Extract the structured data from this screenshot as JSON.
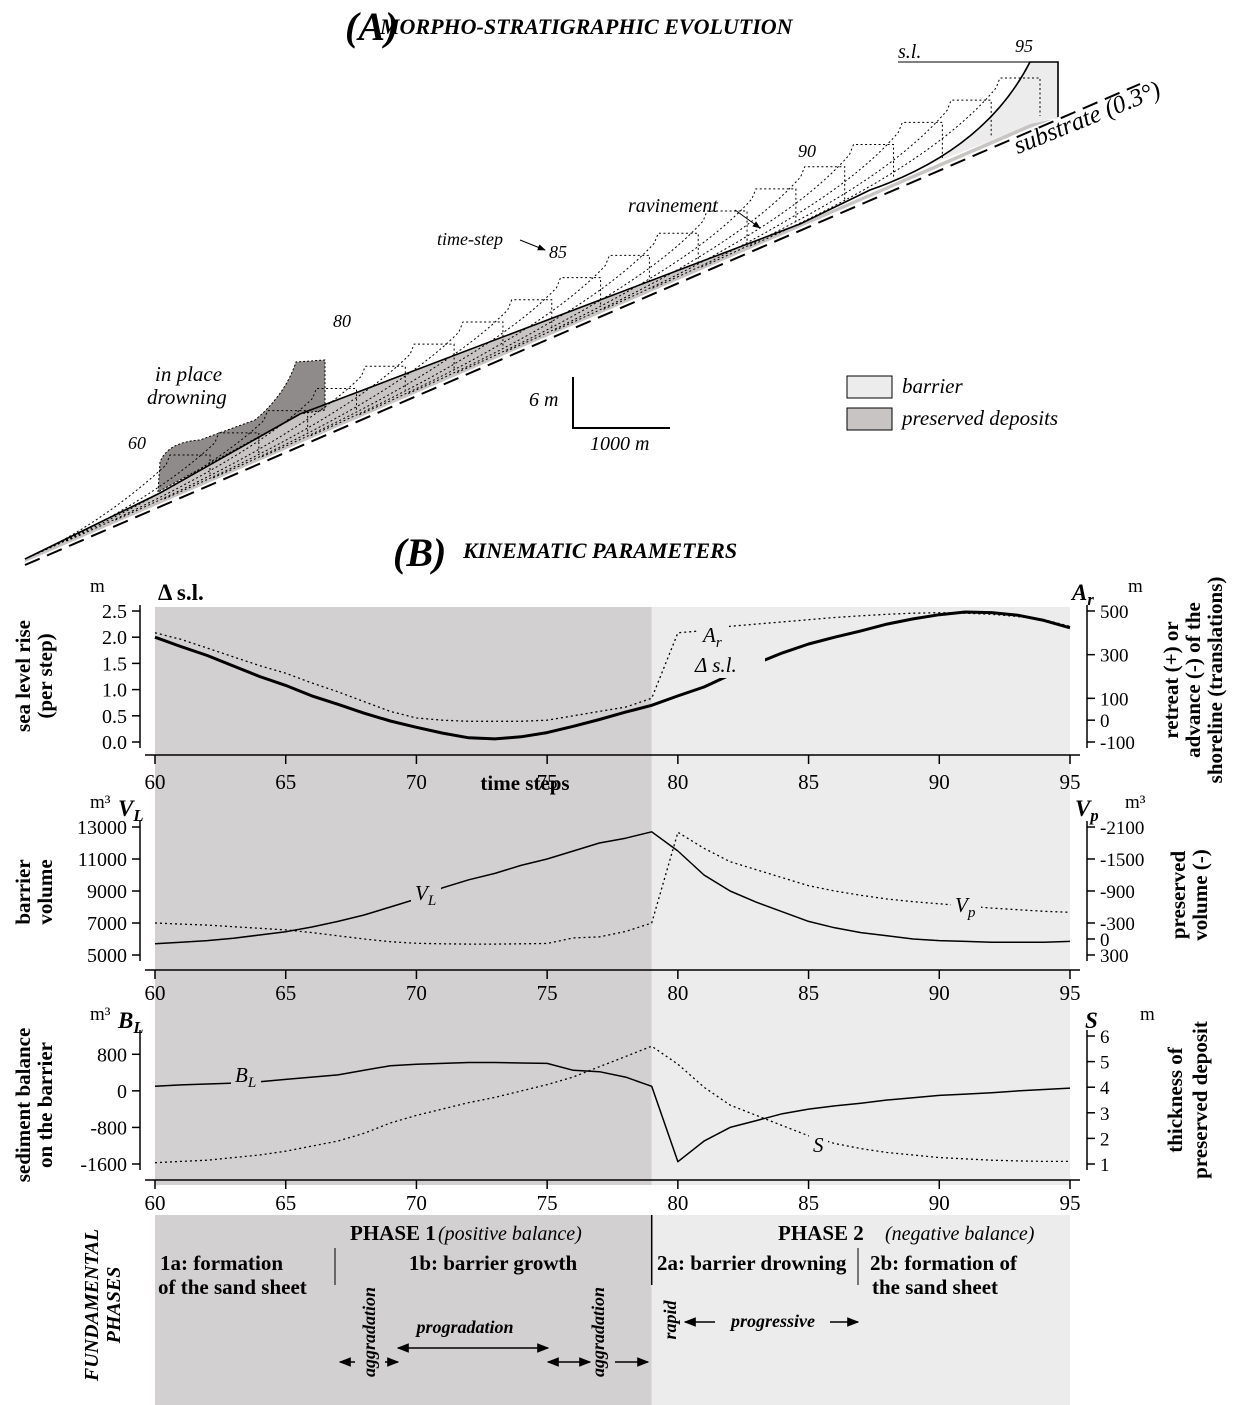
{
  "panel_a": {
    "label": "(A)",
    "title": "MORPHO-STRATIGRAPHIC EVOLUTION",
    "sea_level": "s.l.",
    "substrate": "substrate (0.3°)",
    "ravinement": "ravinement",
    "time_step": "time-step",
    "in_place_drowning": [
      "in place",
      "drowning"
    ],
    "step_labels": [
      "60",
      "80",
      "85",
      "90",
      "95"
    ],
    "scale_vertical": "6 m",
    "scale_horizontal": "1000 m",
    "legend": [
      "barrier",
      "preserved deposits"
    ]
  },
  "panel_b": {
    "label": "(B)",
    "title": "KINEMATIC PARAMETERS"
  },
  "chart_data": [
    {
      "type": "line",
      "xlim": [
        60,
        95
      ],
      "xticks": [
        60,
        65,
        70,
        75,
        80,
        85,
        90,
        95
      ],
      "xlabel": "time steps",
      "x": [
        60,
        61,
        62,
        63,
        64,
        65,
        66,
        67,
        68,
        69,
        70,
        71,
        72,
        73,
        74,
        75,
        76,
        77,
        78,
        79,
        80,
        81,
        82,
        83,
        84,
        85,
        86,
        87,
        88,
        89,
        90,
        91,
        92,
        93,
        94,
        95
      ],
      "y_unit": "m",
      "ylabel": [
        "sea level rise",
        "(per step)"
      ],
      "ylim": [
        0,
        2.5
      ],
      "yticks": [
        {
          "value": 0,
          "label": "0.0"
        },
        0.5,
        {
          "value": 1,
          "label": "1.0"
        },
        1.5,
        {
          "value": 2,
          "label": "2.0"
        },
        2.5
      ],
      "y2_unit": "m",
      "y2label": [
        "retreat (+) or",
        "advance (-) of the",
        "shoreline (translations)"
      ],
      "y2lim": [
        -100,
        500
      ],
      "y2ticks": [
        -100,
        0,
        100,
        300,
        500
      ],
      "series": [
        {
          "name": "Δ s.l.",
          "color": "#000000",
          "linewidth": 3,
          "style": "solid",
          "values": [
            2.0,
            1.82,
            1.65,
            1.45,
            1.25,
            1.08,
            0.88,
            0.72,
            0.55,
            0.4,
            0.28,
            0.17,
            0.08,
            0.06,
            0.1,
            0.18,
            0.3,
            0.43,
            0.57,
            0.7,
            0.88,
            1.05,
            1.28,
            1.5,
            1.7,
            1.87,
            2.0,
            2.12,
            2.25,
            2.35,
            2.43,
            2.48,
            2.47,
            2.42,
            2.32,
            2.18
          ]
        },
        {
          "name": "Ar",
          "axis": "y2",
          "color": "#000000",
          "linewidth": 1.3,
          "style": "dotted",
          "values": [
            400,
            370,
            330,
            290,
            250,
            215,
            170,
            130,
            85,
            40,
            10,
            0,
            -5,
            -5,
            -5,
            0,
            20,
            40,
            60,
            100,
            400,
            410,
            430,
            440,
            450,
            460,
            470,
            478,
            485,
            490,
            492,
            490,
            485,
            475,
            460,
            430
          ]
        }
      ]
    },
    {
      "type": "line",
      "xlim": [
        60,
        95
      ],
      "xticks": [
        60,
        65,
        70,
        75,
        80,
        85,
        90,
        95
      ],
      "x": [
        60,
        61,
        62,
        63,
        64,
        65,
        66,
        67,
        68,
        69,
        70,
        71,
        72,
        73,
        74,
        75,
        76,
        77,
        78,
        79,
        80,
        81,
        82,
        83,
        84,
        85,
        86,
        87,
        88,
        89,
        90,
        91,
        92,
        93,
        94,
        95
      ],
      "y_unit": "m³",
      "ylabel": [
        "barrier",
        "volume"
      ],
      "ylim": [
        5000,
        13000
      ],
      "yticks": [
        5000,
        7000,
        9000,
        11000,
        13000
      ],
      "y2_unit": "m³",
      "y2label": [
        "preserved",
        "volume (-)"
      ],
      "y2lim": [
        300,
        -2100
      ],
      "y2ticks": [
        300,
        0,
        -300,
        -900,
        -1500,
        -2100
      ],
      "series": [
        {
          "name": "VL",
          "color": "#000000",
          "linewidth": 1.5,
          "style": "solid",
          "values": [
            5700,
            5800,
            5900,
            6050,
            6250,
            6450,
            6750,
            7100,
            7500,
            8000,
            8500,
            9200,
            9700,
            10100,
            10600,
            11000,
            11500,
            12000,
            12300,
            12700,
            11500,
            10000,
            9000,
            8300,
            7700,
            7100,
            6700,
            6400,
            6200,
            6000,
            5900,
            5850,
            5800,
            5800,
            5800,
            5850
          ]
        },
        {
          "name": "Vp",
          "axis": "y2",
          "color": "#000000",
          "linewidth": 1.3,
          "style": "dotted",
          "values": [
            -300,
            -280,
            -260,
            -230,
            -200,
            -170,
            -120,
            -60,
            0,
            50,
            80,
            90,
            95,
            95,
            90,
            85,
            -20,
            -40,
            -140,
            -300,
            -2000,
            -1700,
            -1450,
            -1300,
            -1150,
            -1000,
            -900,
            -820,
            -750,
            -700,
            -660,
            -620,
            -580,
            -550,
            -520,
            -500
          ]
        }
      ]
    },
    {
      "type": "line",
      "xlim": [
        60,
        95
      ],
      "xticks": [
        60,
        65,
        70,
        75,
        80,
        85,
        90,
        95
      ],
      "x": [
        60,
        61,
        62,
        63,
        64,
        65,
        66,
        67,
        68,
        69,
        70,
        71,
        72,
        73,
        74,
        75,
        76,
        77,
        78,
        79,
        80,
        81,
        82,
        83,
        84,
        85,
        86,
        87,
        88,
        89,
        90,
        91,
        92,
        93,
        94,
        95
      ],
      "y_unit": "m³",
      "ylabel": [
        "sediment balance",
        "on the barrier"
      ],
      "ylim": [
        -1600,
        1200
      ],
      "yticks": [
        -1600,
        -800,
        0,
        800
      ],
      "y2_unit": "m",
      "y2label": [
        "thickness of",
        "preserved deposit"
      ],
      "y2lim": [
        1,
        6
      ],
      "y2ticks": [
        1,
        2,
        3,
        4,
        5,
        6
      ],
      "series": [
        {
          "name": "BL",
          "color": "#000000",
          "linewidth": 1.5,
          "style": "solid",
          "values": [
            100,
            130,
            150,
            170,
            200,
            250,
            300,
            350,
            450,
            550,
            580,
            600,
            620,
            620,
            610,
            600,
            450,
            420,
            300,
            100,
            -1550,
            -1100,
            -800,
            -650,
            -500,
            -400,
            -330,
            -270,
            -200,
            -150,
            -100,
            -70,
            -40,
            0,
            30,
            60
          ]
        },
        {
          "name": "S",
          "axis": "y2",
          "color": "#000000",
          "linewidth": 1.3,
          "style": "dotted",
          "values": [
            1.05,
            1.1,
            1.15,
            1.25,
            1.35,
            1.5,
            1.7,
            1.9,
            2.2,
            2.6,
            2.9,
            3.15,
            3.4,
            3.6,
            3.85,
            4.1,
            4.4,
            4.8,
            5.2,
            5.6,
            4.9,
            4.0,
            3.3,
            2.9,
            2.5,
            2.1,
            1.8,
            1.6,
            1.45,
            1.35,
            1.25,
            1.2,
            1.15,
            1.12,
            1.1,
            1.1
          ]
        }
      ]
    }
  ],
  "phases": {
    "title": [
      "FUNDAMENTAL",
      "PHASES"
    ],
    "boundary_step": 79,
    "phase_1": {
      "name": "PHASE 1",
      "note": "(positive balance)"
    },
    "phase_2": {
      "name": "PHASE 2",
      "note": "(negative balance)"
    },
    "sub_1a": [
      "1a:  formation",
      "of the sand sheet"
    ],
    "sub_1b": "1b: barrier growth",
    "sub_2a": "2a: barrier drowning",
    "sub_2b": [
      "2b: formation of",
      "the sand sheet"
    ],
    "modes": [
      "aggradation",
      "progradation",
      "aggradation",
      "rapid",
      "progressive"
    ]
  }
}
